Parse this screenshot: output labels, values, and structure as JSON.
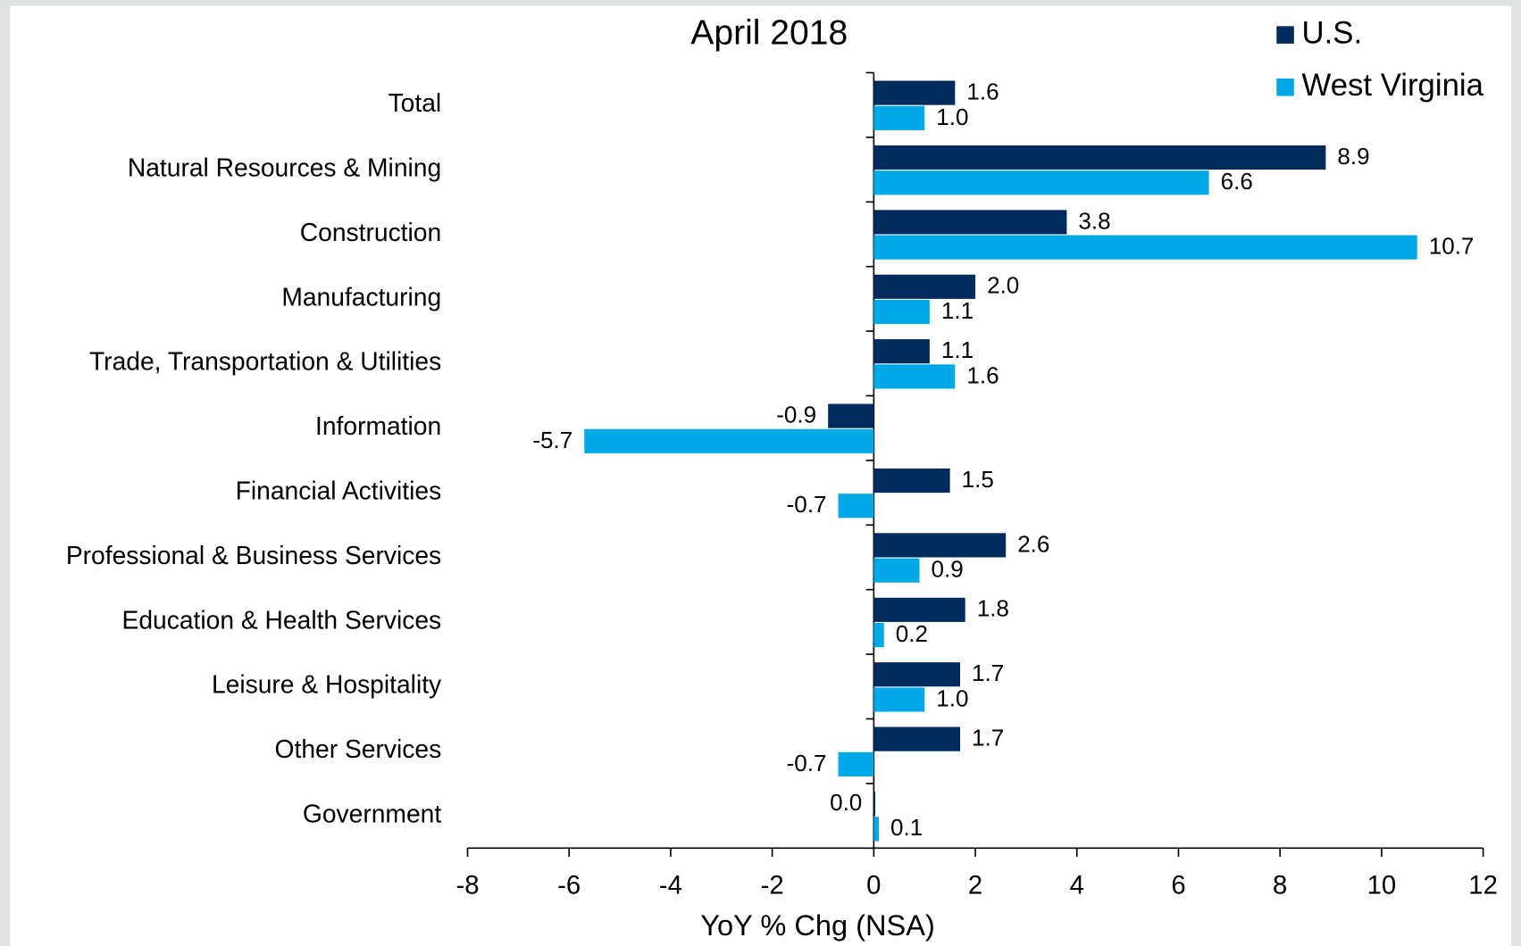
{
  "chart_data": {
    "type": "hbar",
    "title": "April 2018",
    "x_label": "YoY % Chg (NSA)",
    "categories": [
      "Total",
      "Natural Resources & Mining",
      "Construction",
      "Manufacturing",
      "Trade, Transportation & Utilities",
      "Information",
      "Financial Activities",
      "Professional & Business Services",
      "Education & Health Services",
      "Leisure & Hospitality",
      "Other Services",
      "Government"
    ],
    "series": [
      {
        "name": "U.S.",
        "color": "#002b5c",
        "values": [
          1.6,
          8.9,
          3.8,
          2.0,
          1.1,
          -0.9,
          1.5,
          2.6,
          1.8,
          1.7,
          1.7,
          0.0
        ],
        "value_labels": [
          "1.6",
          "8.9",
          "3.8",
          "2.0",
          "1.1",
          "-0.9",
          "1.5",
          "2.6",
          "1.8",
          "1.7",
          "1.7",
          "0.0"
        ]
      },
      {
        "name": "West Virginia",
        "color": "#00a9e6",
        "values": [
          1.0,
          6.6,
          10.7,
          1.1,
          1.6,
          -5.7,
          -0.7,
          0.9,
          0.2,
          1.0,
          -0.7,
          0.1
        ],
        "value_labels": [
          "1.0",
          "6.6",
          "10.7",
          "1.1",
          "1.6",
          "-5.7",
          "-0.7",
          "0.9",
          "0.2",
          "1.0",
          "-0.7",
          "0.1"
        ]
      }
    ],
    "xlim": [
      -8,
      12
    ],
    "xticks": [
      -8,
      -6,
      -4,
      -2,
      0,
      2,
      4,
      6,
      8,
      10,
      12
    ],
    "legend": "top-right"
  }
}
